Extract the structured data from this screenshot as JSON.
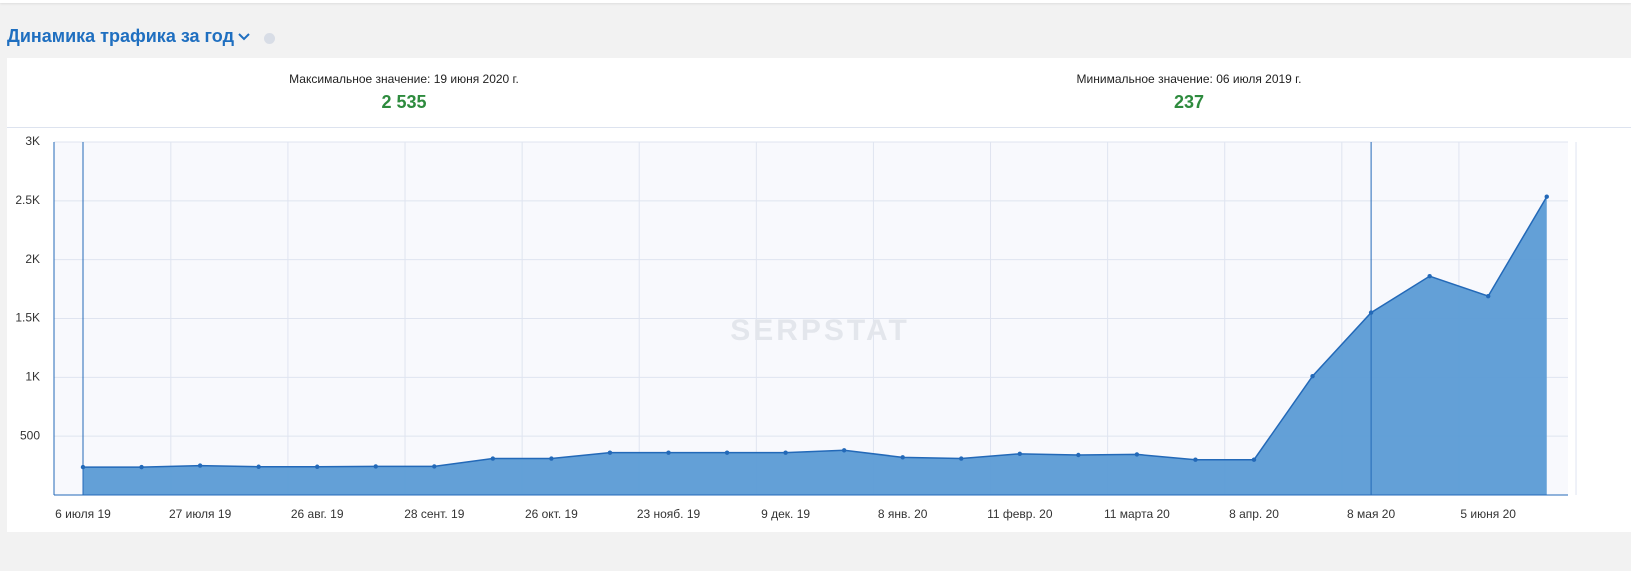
{
  "header": {
    "title": "Динамика трафика за год"
  },
  "summary": [
    {
      "label": "Максимальное значение: 19 июня 2020 г.",
      "value": "2 535"
    },
    {
      "label": "Минимальное значение: 06 июля 2019 г.",
      "value": "237"
    }
  ],
  "chart_data": {
    "type": "area",
    "watermark": "SERPSTAT",
    "categories": [
      "6 июля 19",
      null,
      "27 июля 19",
      null,
      "26 авг. 19",
      null,
      "28 сент. 19",
      null,
      "26 окт. 19",
      null,
      "23 нояб. 19",
      null,
      "9 дек. 19",
      null,
      "8 янв. 20",
      null,
      "11 февр. 20",
      null,
      "11 марта 20",
      null,
      "8 апр. 20",
      null,
      "8 мая 20",
      null,
      "5 июня 20",
      null
    ],
    "values": [
      237,
      237,
      250,
      240,
      240,
      243,
      243,
      310,
      310,
      360,
      360,
      360,
      360,
      380,
      320,
      310,
      350,
      340,
      345,
      300,
      300,
      1010,
      1550,
      1860,
      1690,
      2535
    ],
    "color": "#5b9bd5",
    "line_color": "#2369b8",
    "ylim": [
      0,
      3000
    ],
    "yticks": [
      500,
      {
        "value": 1000,
        "label": "1K"
      },
      {
        "value": 1500,
        "label": "1.5K"
      },
      {
        "value": 2000,
        "label": "2K"
      },
      {
        "value": 2500,
        "label": "2.5K"
      },
      {
        "value": 3000,
        "label": "3K"
      }
    ],
    "grid": true
  }
}
